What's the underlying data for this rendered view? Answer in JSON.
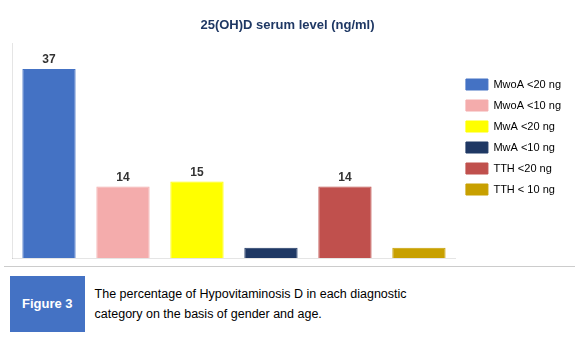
{
  "chart_data": {
    "type": "bar",
    "title": "25(OH)D serum level (ng/ml)",
    "categories": [
      "MwoA <20 ng",
      "MwoA <10 ng",
      "MwA <20 ng",
      "MwA <10 ng",
      "TTH <20 ng",
      "TTH < 10 ng"
    ],
    "values": [
      37,
      14,
      15,
      2,
      14,
      2
    ],
    "colors": [
      "#4472C4",
      "#F4ACAC",
      "#FFFF00",
      "#1F3864",
      "#C0504D",
      "#C8A000"
    ],
    "data_labels": true,
    "value_labels": [
      "37",
      "14",
      "15",
      null,
      "14",
      null
    ],
    "ylim": [
      0,
      42
    ],
    "tick_labels": false,
    "grid": false,
    "legend": "right",
    "annotations": [
      "Figure 3",
      "The percentage of Hypovitaminosis D in each diagnostic",
      "category on the basis of gender and age."
    ]
  }
}
